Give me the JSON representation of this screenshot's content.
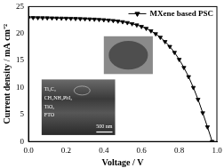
{
  "chart_data": {
    "type": "line",
    "x_label": "Voltage / V",
    "y_label": "Current density / mA cm⁻²",
    "x": [
      0,
      0.025,
      0.05,
      0.075,
      0.1,
      0.125,
      0.15,
      0.175,
      0.2,
      0.225,
      0.25,
      0.275,
      0.3,
      0.325,
      0.35,
      0.375,
      0.4,
      0.425,
      0.45,
      0.475,
      0.5,
      0.525,
      0.55,
      0.575,
      0.6,
      0.625,
      0.65,
      0.675,
      0.7,
      0.725,
      0.75,
      0.775,
      0.8,
      0.825,
      0.85,
      0.875,
      0.9,
      0.925,
      0.95,
      0.975
    ],
    "series": [
      {
        "name": "MXene based PSC",
        "color": "#000000",
        "marker": "triangle-down",
        "line_style": "solid",
        "values": [
          22.95,
          22.95,
          22.93,
          22.92,
          22.9,
          22.88,
          22.86,
          22.84,
          22.82,
          22.8,
          22.78,
          22.75,
          22.72,
          22.69,
          22.65,
          22.6,
          22.55,
          22.48,
          22.4,
          22.3,
          22.18,
          22.02,
          21.82,
          21.58,
          21.3,
          20.95,
          20.5,
          19.95,
          19.3,
          18.5,
          17.6,
          16.5,
          15.2,
          13.7,
          12.0,
          10.0,
          7.8,
          5.3,
          2.7,
          0
        ]
      }
    ],
    "xlim": [
      0,
      1.0
    ],
    "xticks": [
      {
        "value": 0,
        "label": "0.0"
      },
      {
        "value": 0.2,
        "label": "0.2"
      },
      {
        "value": 0.4,
        "label": "0.4"
      },
      {
        "value": 0.6,
        "label": "0.6"
      },
      {
        "value": 0.8,
        "label": "0.8"
      },
      {
        "value": 1.0,
        "label": "1.0"
      }
    ],
    "ylim": [
      0,
      25
    ],
    "yticks": [
      0,
      5,
      10,
      15,
      20,
      25
    ],
    "legend": "upper right",
    "grid": false,
    "annotations": [
      "Ti₃C₂",
      "CH₃NH₃PbI₃",
      "TiO₂",
      "FTO",
      "500 nm"
    ]
  }
}
